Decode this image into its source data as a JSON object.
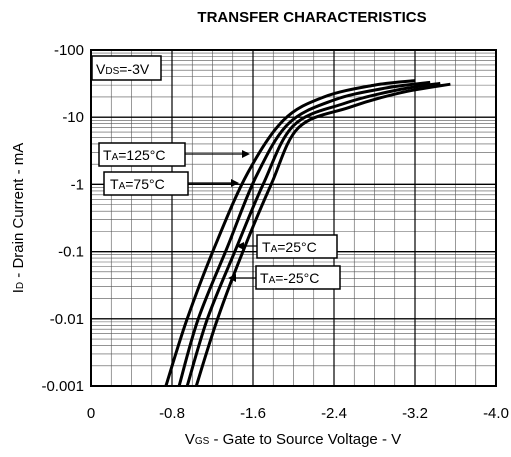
{
  "chart_data": {
    "type": "line",
    "title": "TRANSFER CHARACTERISTICS",
    "xlabel": {
      "main": "V",
      "sub": "GS",
      "rest": " - Gate to Source Voltage - V"
    },
    "ylabel": {
      "main": "I",
      "sub": "D",
      "rest": " - Drain Current - mA"
    },
    "xlim": [
      0,
      -4.0
    ],
    "ylim": [
      -0.001,
      -100
    ],
    "yscale": "log",
    "grid": true,
    "x_ticks": [
      "0",
      "-0.8",
      "-1.6",
      "-2.4",
      "-3.2",
      "-4.0"
    ],
    "y_ticks": [
      "-0.001",
      "-0.01",
      "-0.1",
      "-1",
      "-10",
      "-100"
    ],
    "condition": {
      "main": "V",
      "sub": "DS",
      "rest": "=-3V"
    },
    "series": [
      {
        "name": "TA=125°C",
        "label": {
          "main": "T",
          "sub": "A",
          "rest": "=125°C"
        },
        "x": [
          -0.74,
          -0.95,
          -1.25,
          -1.55,
          -1.9,
          -2.3,
          -2.8,
          -3.2
        ],
        "y": [
          -0.001,
          -0.01,
          -0.15,
          -1.5,
          -9,
          -20,
          -30,
          -35
        ]
      },
      {
        "name": "TA=75°C",
        "label": {
          "main": "T",
          "sub": "A",
          "rest": "=75°C"
        },
        "x": [
          -0.87,
          -1.06,
          -1.35,
          -1.63,
          -1.95,
          -2.4,
          -2.9,
          -3.35
        ],
        "y": [
          -0.001,
          -0.01,
          -0.12,
          -1.3,
          -8,
          -18,
          -27,
          -33
        ]
      },
      {
        "name": "TA=25°C",
        "label": {
          "main": "T",
          "sub": "A",
          "rest": "=25°C"
        },
        "x": [
          -0.95,
          -1.15,
          -1.42,
          -1.7,
          -2.0,
          -2.5,
          -3.0,
          -3.45
        ],
        "y": [
          -0.001,
          -0.01,
          -0.1,
          -1.0,
          -7.5,
          -16,
          -25,
          -32
        ]
      },
      {
        "name": "TA=-25°C",
        "label": {
          "main": "T",
          "sub": "A",
          "rest": "=-25°C"
        },
        "x": [
          -1.04,
          -1.25,
          -1.5,
          -1.78,
          -2.05,
          -2.55,
          -3.05,
          -3.55
        ],
        "y": [
          -0.001,
          -0.01,
          -0.1,
          -1.0,
          -7,
          -14,
          -23,
          -31
        ]
      }
    ]
  }
}
